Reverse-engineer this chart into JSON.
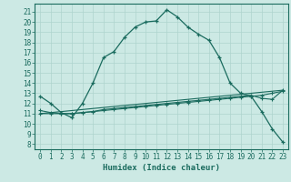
{
  "xlabel": "Humidex (Indice chaleur)",
  "ylabel": "",
  "xlim": [
    -0.5,
    23.5
  ],
  "ylim": [
    7.5,
    21.8
  ],
  "yticks": [
    8,
    9,
    10,
    11,
    12,
    13,
    14,
    15,
    16,
    17,
    18,
    19,
    20,
    21
  ],
  "xticks": [
    0,
    1,
    2,
    3,
    4,
    5,
    6,
    7,
    8,
    9,
    10,
    11,
    12,
    13,
    14,
    15,
    16,
    17,
    18,
    19,
    20,
    21,
    22,
    23
  ],
  "bg_color": "#cce9e4",
  "line_color": "#1a6b5e",
  "grid_color": "#b0d8d2",
  "line1_x": [
    0,
    1,
    2,
    3,
    4,
    5,
    6,
    7,
    8,
    9,
    10,
    11,
    12,
    13,
    14,
    15,
    16,
    17,
    18,
    19,
    20,
    21,
    22,
    23
  ],
  "line1_y": [
    12.7,
    12.0,
    11.1,
    10.6,
    12.0,
    14.0,
    16.5,
    17.1,
    18.5,
    19.5,
    20.0,
    20.1,
    21.2,
    20.5,
    19.5,
    18.8,
    18.2,
    16.5,
    14.0,
    13.0,
    12.7,
    11.2,
    9.5,
    8.2
  ],
  "line2_x": [
    0,
    1,
    2,
    3,
    4,
    5,
    6,
    7,
    8,
    9,
    10,
    11,
    12,
    13,
    14,
    15,
    16,
    17,
    18,
    19,
    20,
    21,
    22,
    23
  ],
  "line2_y": [
    11.0,
    11.0,
    11.0,
    11.0,
    11.1,
    11.2,
    11.3,
    11.4,
    11.5,
    11.6,
    11.7,
    11.8,
    11.9,
    12.0,
    12.1,
    12.2,
    12.3,
    12.4,
    12.5,
    12.6,
    12.7,
    12.8,
    13.0,
    13.2
  ],
  "line3_x": [
    0,
    1,
    2,
    3,
    4,
    5,
    6,
    7,
    8,
    9,
    10,
    11,
    12,
    13,
    14,
    15,
    16,
    17,
    18,
    19,
    20,
    21,
    22,
    23
  ],
  "line3_y": [
    11.3,
    11.1,
    11.0,
    11.0,
    11.1,
    11.2,
    11.4,
    11.5,
    11.6,
    11.7,
    11.8,
    11.9,
    12.0,
    12.1,
    12.2,
    12.3,
    12.4,
    12.5,
    12.6,
    12.7,
    12.8,
    12.5,
    12.4,
    13.3
  ],
  "line4_x": [
    0,
    23
  ],
  "line4_y": [
    11.0,
    13.3
  ]
}
